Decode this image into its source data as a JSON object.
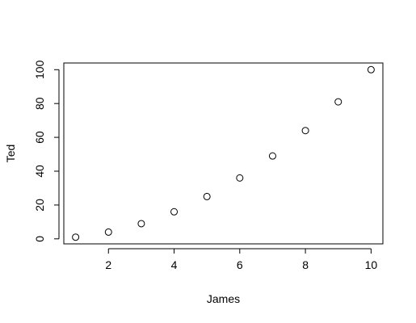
{
  "chart_data": {
    "type": "scatter",
    "title": "",
    "xlabel": "James",
    "ylabel": "Ted",
    "x": [
      1,
      2,
      3,
      4,
      5,
      6,
      7,
      8,
      9,
      10
    ],
    "y": [
      1,
      4,
      9,
      16,
      25,
      36,
      49,
      64,
      81,
      100
    ],
    "xticks": [
      "2",
      "4",
      "6",
      "8",
      "10"
    ],
    "yticks": [
      "0",
      "20",
      "40",
      "60",
      "80",
      "100"
    ],
    "xlim": [
      0.64,
      10.36
    ],
    "ylim": [
      -2.96,
      103.96
    ],
    "grid": false,
    "marker": "open-circle",
    "point_color": "#000000",
    "axis_color": "#000000"
  }
}
